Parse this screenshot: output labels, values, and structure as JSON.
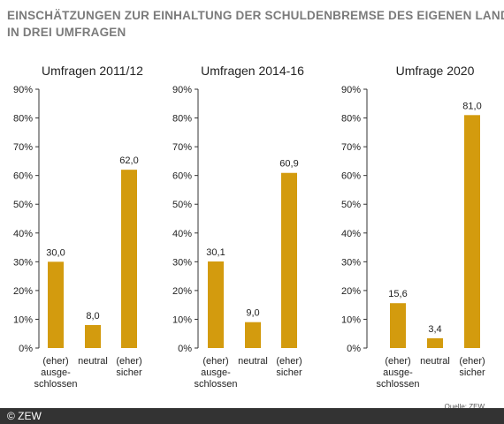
{
  "title": {
    "line1": "EINSCHÄTZUNGEN ZUR EINHALTUNG DER SCHULDENBREMSE DES EIGENEN LANDES",
    "line2": "IN DREI UMFRAGEN"
  },
  "source": "Quelle: ZEW",
  "copyright": "© ZEW",
  "colors": {
    "bar": "#D39B0E",
    "axis": "#333333",
    "footer": "#333333"
  },
  "chart_data": [
    {
      "type": "bar",
      "title": "Umfragen 2011/12",
      "categories": [
        [
          "(eher)",
          "ausge-",
          "schlossen"
        ],
        [
          "neutral"
        ],
        [
          "(eher)",
          "sicher"
        ]
      ],
      "values": [
        30.0,
        8.0,
        62.0
      ],
      "value_labels": [
        "30,0",
        "8,0",
        "62,0"
      ],
      "ylim": [
        0,
        90
      ],
      "yticks": [
        "0%",
        "10%",
        "20%",
        "30%",
        "40%",
        "50%",
        "60%",
        "70%",
        "80%",
        "90%"
      ]
    },
    {
      "type": "bar",
      "title": "Umfragen 2014-16",
      "categories": [
        [
          "(eher)",
          "ausge-",
          "schlossen"
        ],
        [
          "neutral"
        ],
        [
          "(eher)",
          "sicher"
        ]
      ],
      "values": [
        30.1,
        9.0,
        60.9
      ],
      "value_labels": [
        "30,1",
        "9,0",
        "60,9"
      ],
      "ylim": [
        0,
        90
      ],
      "yticks": [
        "0%",
        "10%",
        "20%",
        "30%",
        "40%",
        "50%",
        "60%",
        "70%",
        "80%",
        "90%"
      ]
    },
    {
      "type": "bar",
      "title": "Umfrage 2020",
      "categories": [
        [
          "(eher)",
          "ausge-",
          "schlossen"
        ],
        [
          "neutral"
        ],
        [
          "(eher)",
          "sicher"
        ]
      ],
      "values": [
        15.6,
        3.4,
        81.0
      ],
      "value_labels": [
        "15,6",
        "3,4",
        "81,0"
      ],
      "ylim": [
        0,
        90
      ],
      "yticks": [
        "0%",
        "10%",
        "20%",
        "30%",
        "40%",
        "50%",
        "60%",
        "70%",
        "80%",
        "90%"
      ]
    }
  ]
}
